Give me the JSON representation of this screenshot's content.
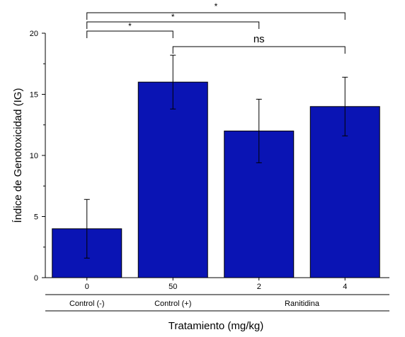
{
  "chart_data": {
    "type": "bar",
    "categories": [
      "0",
      "50",
      "2",
      "4"
    ],
    "values": [
      4,
      16,
      12,
      14
    ],
    "errors": [
      2.4,
      2.2,
      2.6,
      2.4
    ],
    "ylabel": "Índice de Genotoxicidad (IG)",
    "xlabel": "Tratamiento (mg/kg)",
    "ylim": [
      0,
      20
    ],
    "yticks": [
      "0",
      "5",
      "10",
      "15",
      "20"
    ],
    "bar_color": "#0a14b4",
    "groups": [
      {
        "label": "Control (-)",
        "categories": [
          0
        ]
      },
      {
        "label": "Control (+)",
        "categories": [
          1
        ]
      },
      {
        "label": "Ranitidina",
        "categories": [
          2,
          3
        ]
      }
    ],
    "significance": [
      {
        "from": 0,
        "to": 1,
        "label": "*"
      },
      {
        "from": 0,
        "to": 2,
        "label": "*"
      },
      {
        "from": 0,
        "to": 3,
        "label": "*"
      },
      {
        "from": 1,
        "to": 3,
        "label": "ns"
      }
    ]
  }
}
